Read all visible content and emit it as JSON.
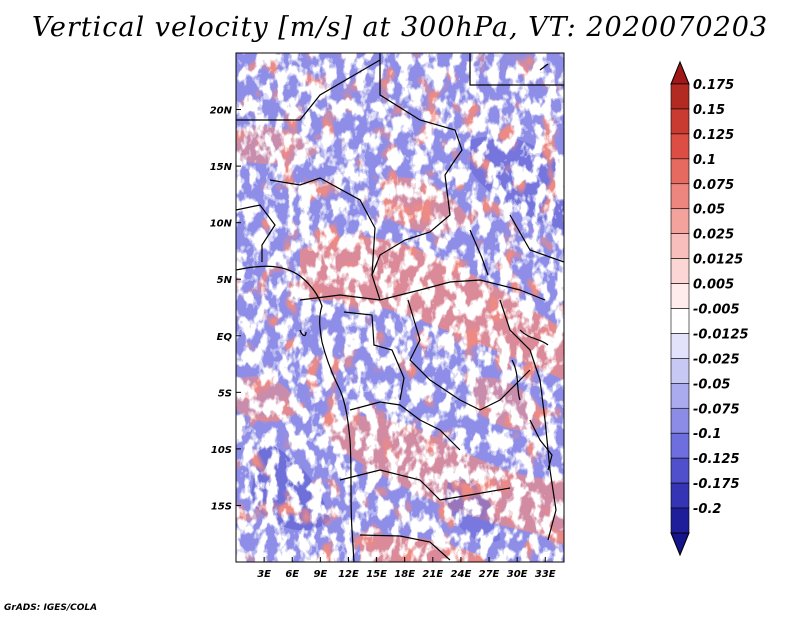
{
  "title": "Vertical velocity [m/s] at 300hPa, VT: 2020070203",
  "credit": "GrADS: IGES/COLA",
  "map": {
    "lon_range": [
      0,
      35
    ],
    "lat_range": [
      -20,
      25
    ],
    "lat_ticks": [
      {
        "value": 20,
        "label": "20N"
      },
      {
        "value": 15,
        "label": "15N"
      },
      {
        "value": 10,
        "label": "10N"
      },
      {
        "value": 5,
        "label": "5N"
      },
      {
        "value": 0,
        "label": "EQ"
      },
      {
        "value": -5,
        "label": "5S"
      },
      {
        "value": -10,
        "label": "10S"
      },
      {
        "value": -15,
        "label": "15S"
      }
    ],
    "lon_ticks": [
      {
        "value": 3,
        "label": "3E"
      },
      {
        "value": 6,
        "label": "6E"
      },
      {
        "value": 9,
        "label": "9E"
      },
      {
        "value": 12,
        "label": "12E"
      },
      {
        "value": 15,
        "label": "15E"
      },
      {
        "value": 18,
        "label": "18E"
      },
      {
        "value": 21,
        "label": "21E"
      },
      {
        "value": 24,
        "label": "24E"
      },
      {
        "value": 27,
        "label": "27E"
      },
      {
        "value": 30,
        "label": "30E"
      },
      {
        "value": 33,
        "label": "33E"
      }
    ]
  },
  "colorbar": [
    {
      "label": "0.175",
      "color": "#b22a22"
    },
    {
      "label": "0.15",
      "color": "#c93a30"
    },
    {
      "label": "0.125",
      "color": "#dc4e44"
    },
    {
      "label": "0.1",
      "color": "#e66a60"
    },
    {
      "label": "0.075",
      "color": "#ee8680"
    },
    {
      "label": "0.05",
      "color": "#f3a29c"
    },
    {
      "label": "0.025",
      "color": "#f8bebb"
    },
    {
      "label": "0.0125",
      "color": "#fbd6d4"
    },
    {
      "label": "0.005",
      "color": "#fdeceb"
    },
    {
      "label": "-0.005",
      "color": "#ffffff"
    },
    {
      "label": "-0.0125",
      "color": "#e2e2fa"
    },
    {
      "label": "-0.025",
      "color": "#c8c8f4"
    },
    {
      "label": "-0.05",
      "color": "#aaaaee"
    },
    {
      "label": "-0.075",
      "color": "#8c8ce6"
    },
    {
      "label": "-0.1",
      "color": "#6e6ede"
    },
    {
      "label": "-0.125",
      "color": "#5050cc"
    },
    {
      "label": "-0.175",
      "color": "#3434b4"
    },
    {
      "label": "-0.2",
      "color": "#1e1e9a"
    }
  ],
  "colorbar_tips": {
    "top": "#a01818",
    "bottom": "#14148c"
  }
}
